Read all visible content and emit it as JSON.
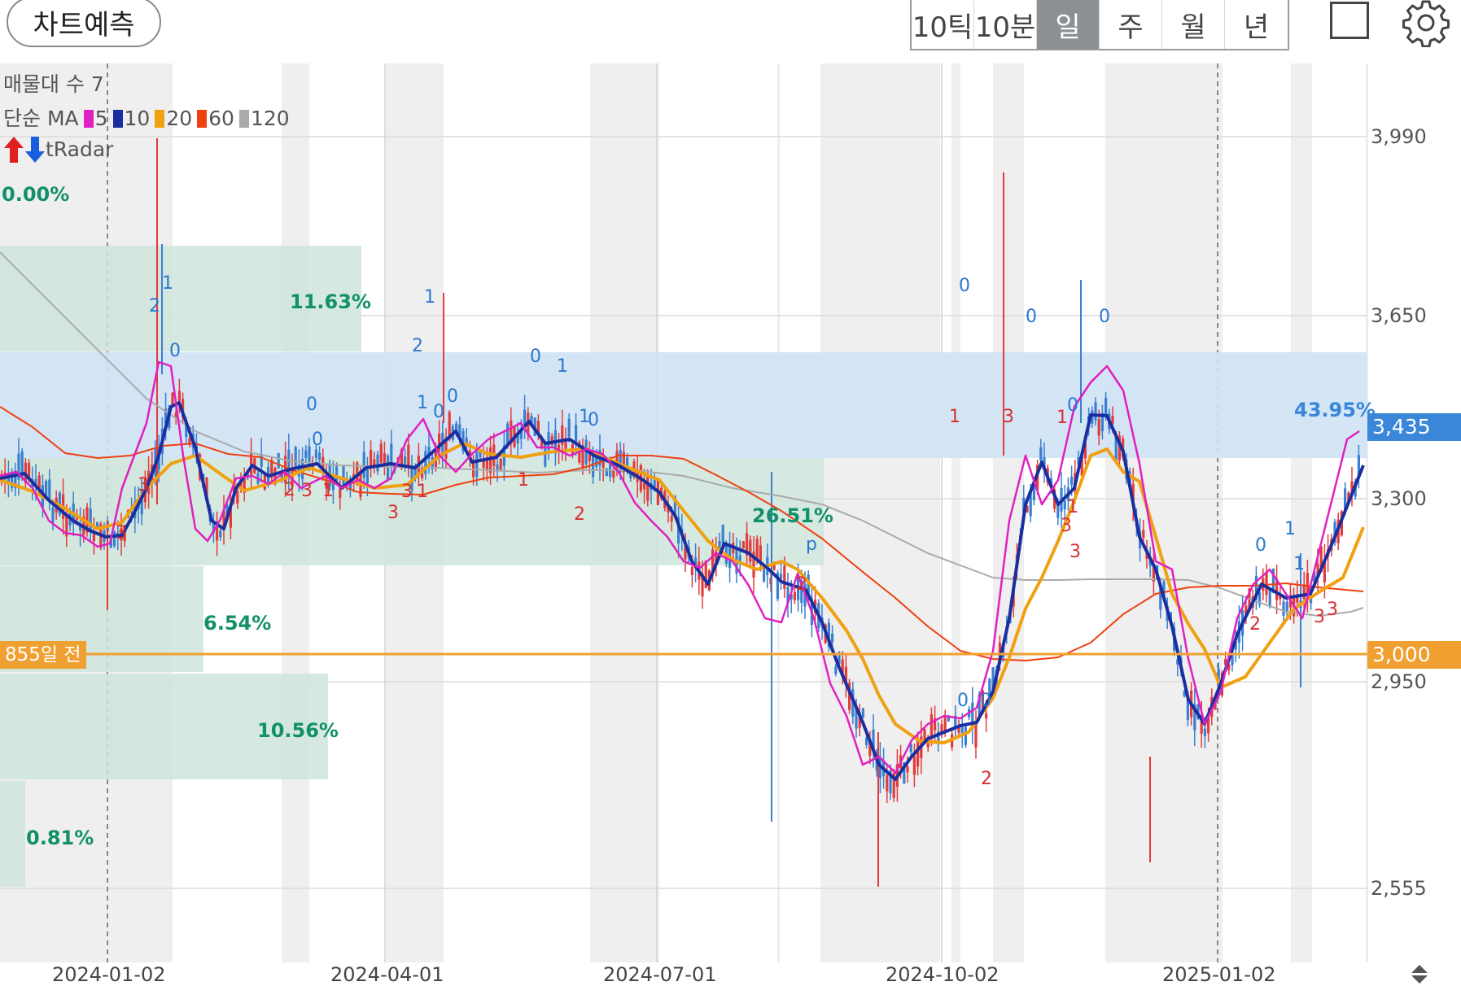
{
  "toolbar": {
    "predict_label": "차트예측",
    "periods": [
      "10틱",
      "10분",
      "일",
      "주",
      "월",
      "년"
    ],
    "active_period": "일",
    "icons": [
      "fullscreen-square-icon",
      "gear-icon"
    ]
  },
  "legend": {
    "volume_profile": "매물대 수 7",
    "ma_prefix": "단순 MA",
    "ma_items": [
      {
        "label": "5",
        "color": "#e020c0"
      },
      {
        "label": "10",
        "color": "#1a2ea0"
      },
      {
        "label": "20",
        "color": "#f0a010"
      },
      {
        "label": "60",
        "color": "#f04010"
      },
      {
        "label": "120",
        "color": "#aaaaaa"
      }
    ],
    "tradar": "tRadar",
    "top_pct": "0.00%"
  },
  "volume_profile_pcts": {
    "b1": "11.63%",
    "b2": "43.95%",
    "b3": "26.51%",
    "b4": "6.54%",
    "b5": "10.56%",
    "b6": "0.81%"
  },
  "price_axis": [
    "3,990",
    "3,650",
    "3,300",
    "2,950",
    "2,555"
  ],
  "current_price_tag": "3,435",
  "reference_line": {
    "label": "855일 전",
    "price_tag": "3,000"
  },
  "date_axis": [
    "2024-01-02",
    "2024-04-01",
    "2024-07-01",
    "2024-10-02",
    "2025-01-02"
  ],
  "colors": {
    "up_candle": "#e23b3b",
    "down_candle": "#3a7fd0",
    "profile_green": "#cfe5dc",
    "profile_blue": "#cfe2f5",
    "price_tag_blue": "#3a86d8",
    "ref_line_orange": "#f0a030"
  },
  "signal_numbers_blue": [
    "2",
    "1",
    "0",
    "2",
    "1",
    "1",
    "0",
    "0",
    "0",
    "0",
    "1",
    "0",
    "0",
    "1",
    "p",
    "0",
    "0",
    "0",
    "0",
    "0",
    "0",
    "1",
    "1",
    "0"
  ],
  "signal_numbers_red": [
    "3",
    "3",
    "2",
    "3",
    "1",
    "3",
    "3",
    "1",
    "1",
    "2",
    "2",
    "1",
    "1",
    "1",
    "2",
    "3",
    "3",
    "3",
    "2",
    "3",
    "3"
  ]
}
